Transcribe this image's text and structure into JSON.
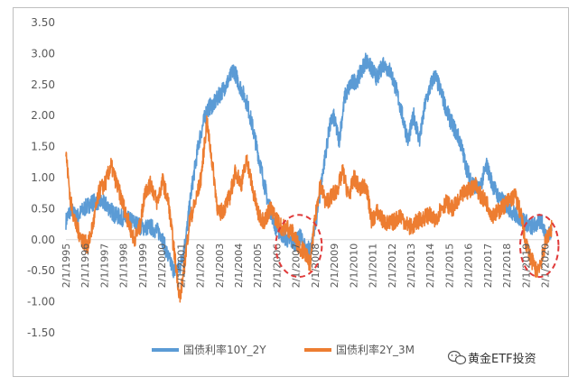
{
  "chart_data": {
    "type": "line",
    "title": "",
    "xlabel": "",
    "ylabel": "",
    "ylim": [
      -1.5,
      3.5
    ],
    "yticks": [
      "3.50",
      "3.00",
      "2.50",
      "2.00",
      "1.50",
      "1.00",
      "0.50",
      "0.00",
      "-0.50",
      "-1.00",
      "-1.50"
    ],
    "xticks": [
      "2/1/1995",
      "2/1/1996",
      "2/1/1997",
      "2/1/1998",
      "2/1/1999",
      "2/1/2000",
      "2/1/2001",
      "2/1/2002",
      "2/1/2003",
      "2/1/2004",
      "2/1/2005",
      "2/1/2006",
      "2/1/2007",
      "2/1/2008",
      "2/1/2009",
      "2/1/2010",
      "2/1/2011",
      "2/1/2012",
      "2/1/2013",
      "2/1/2014",
      "2/1/2015",
      "2/1/2016",
      "2/1/2017",
      "2/1/2018",
      "2/1/2019",
      "2/1/2020"
    ],
    "x_range": [
      1995.05,
      2020.4
    ],
    "grid": false,
    "legend_position": "bottom",
    "series": [
      {
        "name": "国债利率10Y_2Y",
        "color": "#5b9bd5",
        "points": [
          [
            1995.05,
            0.3
          ],
          [
            1995.3,
            0.5
          ],
          [
            1995.6,
            0.35
          ],
          [
            1996.0,
            0.5
          ],
          [
            1996.4,
            0.6
          ],
          [
            1996.8,
            0.62
          ],
          [
            1997.2,
            0.55
          ],
          [
            1997.6,
            0.4
          ],
          [
            1998.0,
            0.35
          ],
          [
            1998.5,
            0.3
          ],
          [
            1999.0,
            0.2
          ],
          [
            1999.5,
            0.2
          ],
          [
            2000.0,
            0.1
          ],
          [
            2000.4,
            -0.3
          ],
          [
            2000.7,
            -0.5
          ],
          [
            2001.0,
            -0.45
          ],
          [
            2001.3,
            0.0
          ],
          [
            2001.6,
            0.8
          ],
          [
            2002.0,
            1.6
          ],
          [
            2002.4,
            2.1
          ],
          [
            2002.8,
            2.2
          ],
          [
            2003.2,
            2.4
          ],
          [
            2003.6,
            2.6
          ],
          [
            2003.8,
            2.75
          ],
          [
            2004.1,
            2.5
          ],
          [
            2004.5,
            2.2
          ],
          [
            2004.8,
            1.8
          ],
          [
            2005.2,
            1.2
          ],
          [
            2005.6,
            0.6
          ],
          [
            2006.0,
            0.2
          ],
          [
            2006.3,
            0.1
          ],
          [
            2006.6,
            0.0
          ],
          [
            2007.0,
            -0.05
          ],
          [
            2007.3,
            0.05
          ],
          [
            2007.6,
            -0.2
          ],
          [
            2007.9,
            -0.05
          ],
          [
            2008.2,
            0.5
          ],
          [
            2008.5,
            1.2
          ],
          [
            2008.8,
            1.8
          ],
          [
            2009.0,
            2.0
          ],
          [
            2009.3,
            1.6
          ],
          [
            2009.6,
            2.3
          ],
          [
            2009.9,
            2.5
          ],
          [
            2010.3,
            2.6
          ],
          [
            2010.7,
            2.9
          ],
          [
            2011.0,
            2.75
          ],
          [
            2011.3,
            2.6
          ],
          [
            2011.6,
            2.85
          ],
          [
            2012.0,
            2.7
          ],
          [
            2012.3,
            2.4
          ],
          [
            2012.6,
            2.0
          ],
          [
            2012.9,
            1.6
          ],
          [
            2013.2,
            2.0
          ],
          [
            2013.5,
            1.6
          ],
          [
            2013.8,
            2.2
          ],
          [
            2014.1,
            2.5
          ],
          [
            2014.3,
            2.65
          ],
          [
            2014.6,
            2.4
          ],
          [
            2015.0,
            2.0
          ],
          [
            2015.3,
            1.8
          ],
          [
            2015.6,
            1.6
          ],
          [
            2016.0,
            1.1
          ],
          [
            2016.3,
            0.9
          ],
          [
            2016.6,
            0.8
          ],
          [
            2017.0,
            1.2
          ],
          [
            2017.3,
            0.9
          ],
          [
            2017.6,
            0.7
          ],
          [
            2017.9,
            0.6
          ],
          [
            2018.2,
            0.5
          ],
          [
            2018.5,
            0.4
          ],
          [
            2018.8,
            0.35
          ],
          [
            2019.0,
            0.3
          ],
          [
            2019.3,
            0.2
          ],
          [
            2019.6,
            0.25
          ],
          [
            2019.9,
            0.3
          ],
          [
            2020.1,
            0.0
          ],
          [
            2020.4,
            0.2
          ]
        ]
      },
      {
        "name": "国债利率2Y_3M",
        "color": "#ed7d31",
        "points": [
          [
            1995.05,
            1.4
          ],
          [
            1995.3,
            0.6
          ],
          [
            1995.6,
            0.2
          ],
          [
            1995.9,
            0.0
          ],
          [
            1996.2,
            -0.1
          ],
          [
            1996.5,
            0.3
          ],
          [
            1996.8,
            0.8
          ],
          [
            1997.1,
            0.9
          ],
          [
            1997.4,
            1.2
          ],
          [
            1997.7,
            0.9
          ],
          [
            1998.0,
            0.6
          ],
          [
            1998.3,
            0.3
          ],
          [
            1998.6,
            0.0
          ],
          [
            1998.9,
            0.2
          ],
          [
            1999.2,
            0.8
          ],
          [
            1999.5,
            0.9
          ],
          [
            1999.8,
            0.6
          ],
          [
            2000.1,
            0.95
          ],
          [
            2000.4,
            0.6
          ],
          [
            2000.7,
            -0.2
          ],
          [
            2001.0,
            -0.95
          ],
          [
            2001.2,
            -0.5
          ],
          [
            2001.5,
            0.3
          ],
          [
            2001.8,
            0.6
          ],
          [
            2002.1,
            1.0
          ],
          [
            2002.4,
            1.9
          ],
          [
            2002.7,
            1.2
          ],
          [
            2003.0,
            0.4
          ],
          [
            2003.3,
            0.5
          ],
          [
            2003.6,
            0.7
          ],
          [
            2003.9,
            1.1
          ],
          [
            2004.2,
            0.9
          ],
          [
            2004.5,
            1.3
          ],
          [
            2004.8,
            0.8
          ],
          [
            2005.1,
            0.4
          ],
          [
            2005.4,
            0.3
          ],
          [
            2005.7,
            0.5
          ],
          [
            2006.0,
            0.35
          ],
          [
            2006.3,
            0.2
          ],
          [
            2006.6,
            0.2
          ],
          [
            2006.9,
            0.1
          ],
          [
            2007.2,
            -0.1
          ],
          [
            2007.5,
            -0.2
          ],
          [
            2007.8,
            -0.4
          ],
          [
            2008.0,
            0.2
          ],
          [
            2008.3,
            0.9
          ],
          [
            2008.6,
            0.6
          ],
          [
            2008.9,
            0.7
          ],
          [
            2009.2,
            0.8
          ],
          [
            2009.5,
            1.1
          ],
          [
            2009.8,
            0.7
          ],
          [
            2010.1,
            1.0
          ],
          [
            2010.4,
            0.8
          ],
          [
            2010.7,
            0.9
          ],
          [
            2011.0,
            0.3
          ],
          [
            2011.3,
            0.45
          ],
          [
            2011.6,
            0.3
          ],
          [
            2011.9,
            0.25
          ],
          [
            2012.2,
            0.3
          ],
          [
            2012.5,
            0.4
          ],
          [
            2012.8,
            0.25
          ],
          [
            2013.1,
            0.2
          ],
          [
            2013.4,
            0.3
          ],
          [
            2013.7,
            0.35
          ],
          [
            2014.0,
            0.4
          ],
          [
            2014.3,
            0.3
          ],
          [
            2014.6,
            0.5
          ],
          [
            2014.9,
            0.6
          ],
          [
            2015.2,
            0.5
          ],
          [
            2015.5,
            0.6
          ],
          [
            2015.8,
            0.75
          ],
          [
            2016.1,
            0.8
          ],
          [
            2016.4,
            0.9
          ],
          [
            2016.7,
            0.7
          ],
          [
            2017.0,
            0.6
          ],
          [
            2017.3,
            0.4
          ],
          [
            2017.6,
            0.45
          ],
          [
            2017.9,
            0.55
          ],
          [
            2018.2,
            0.65
          ],
          [
            2018.5,
            0.7
          ],
          [
            2018.8,
            0.4
          ],
          [
            2019.0,
            0.0
          ],
          [
            2019.3,
            -0.3
          ],
          [
            2019.6,
            -0.5
          ],
          [
            2019.9,
            -0.3
          ],
          [
            2020.1,
            0.0
          ],
          [
            2020.4,
            0.2
          ]
        ]
      }
    ],
    "annotations": [
      {
        "shape": "dashed-ellipse",
        "color": "#e03a3a",
        "center": [
          2007.2,
          -0.1
        ],
        "rx_years": 1.2,
        "ry_value": 0.5
      },
      {
        "shape": "dashed-ellipse",
        "color": "#e03a3a",
        "center": [
          2019.75,
          -0.1
        ],
        "rx_years": 1.0,
        "ry_value": 0.5
      }
    ]
  },
  "watermark": {
    "text": "黄金ETF投资",
    "icon": "wechat-icon"
  }
}
